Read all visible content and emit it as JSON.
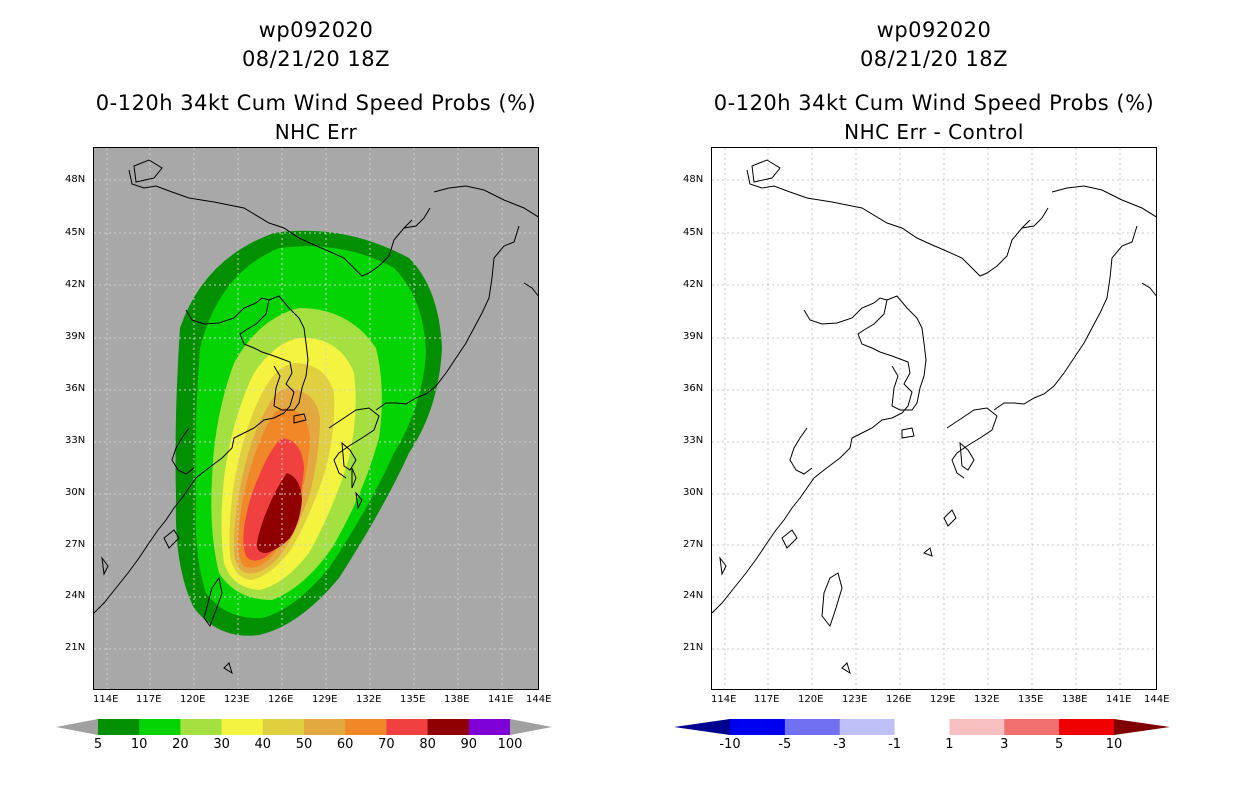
{
  "left_panel": {
    "title_line1": "wp092020",
    "title_line2": "08/21/20 18Z",
    "title_line3": "0-120h 34kt Cum Wind Speed Probs (%)",
    "title_line4": "NHC Err",
    "background_color": "#a8a8a8",
    "colorbar": {
      "levels": [
        "5",
        "10",
        "20",
        "30",
        "40",
        "50",
        "60",
        "70",
        "80",
        "90",
        "100"
      ],
      "colors": [
        "#a0a0a0",
        "#029002",
        "#04d404",
        "#a4e040",
        "#f4f440",
        "#e0d040",
        "#e4a840",
        "#f08828",
        "#f04040",
        "#900000",
        "#8000d8",
        "#a0a0a0"
      ]
    }
  },
  "right_panel": {
    "title_line1": "wp092020",
    "title_line2": "08/21/20 18Z",
    "title_line3": "0-120h 34kt Cum Wind Speed Probs (%)",
    "title_line4": "NHC Err - Control",
    "colorbar": {
      "levels": [
        "-10",
        "-5",
        "-3",
        "-1",
        "1",
        "3",
        "5",
        "10"
      ],
      "colors": [
        "#000090",
        "#0000f0",
        "#7070f0",
        "#c0c0f8",
        "#ffffff",
        "#f8c0c0",
        "#f07070",
        "#f00000",
        "#800000"
      ]
    }
  },
  "axes": {
    "lat_labels": [
      "48N",
      "45N",
      "42N",
      "39N",
      "36N",
      "33N",
      "30N",
      "27N",
      "24N",
      "21N"
    ],
    "lon_labels": [
      "114E",
      "117E",
      "120E",
      "123E",
      "126E",
      "129E",
      "132E",
      "135E",
      "138E",
      "141E",
      "144E"
    ]
  },
  "probability_field": {
    "levels_pct": [
      5,
      10,
      20,
      30,
      40,
      50,
      60,
      70,
      80,
      90
    ],
    "peak_region": "East China Sea, approx. 126E 28N",
    "extent": "approx. 117E-137E, 22N-45N"
  }
}
